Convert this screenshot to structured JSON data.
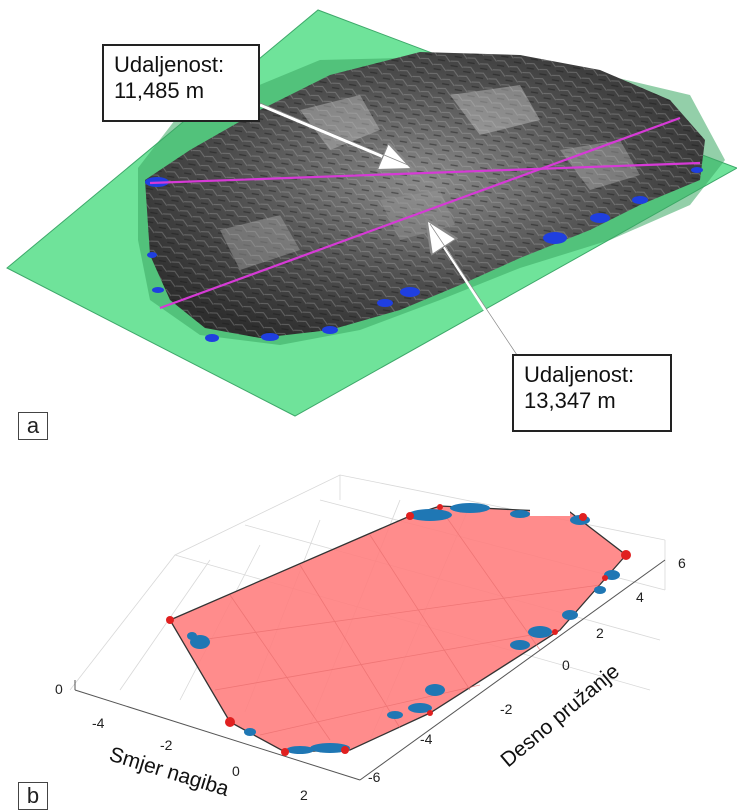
{
  "panel_a": {
    "label": "a",
    "callout_top": {
      "line1": "Udaljenost:",
      "line2": "11,485 m"
    },
    "callout_bottom": {
      "line1": "Udaljenost:",
      "line2": "13,347 m"
    }
  },
  "panel_b": {
    "label": "b",
    "x_axis_title": "Smjer nagiba",
    "y_axis_title": "Desno pružanje",
    "x_ticks": [
      "-4",
      "-2",
      "0",
      "2"
    ],
    "y_ticks": [
      "-6",
      "-4",
      "-2",
      "0",
      "2",
      "4",
      "6"
    ],
    "z_ticks": [
      "0"
    ]
  },
  "colors": {
    "plane": "#6fe39a",
    "rock": "#5a5a5a",
    "water": "#1f3fe0",
    "measure_line": "#d63ad6",
    "hull_fill": "#ff8080",
    "points": "#1f77b4",
    "vertex_marker": "#e02020"
  }
}
